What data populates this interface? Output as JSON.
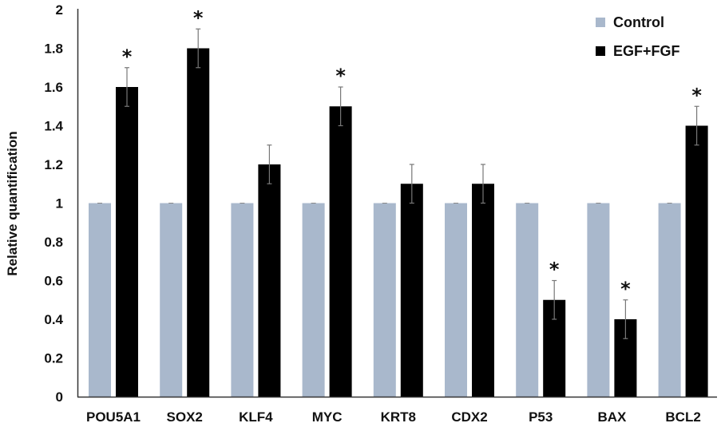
{
  "chart_data": {
    "type": "bar",
    "title": "",
    "xlabel": "",
    "ylabel": "Relative quantification",
    "ylim": [
      0,
      2
    ],
    "yticks": [
      "0",
      "0.2",
      "0.4",
      "0.6",
      "0.8",
      "1",
      "1.2",
      "1.4",
      "1.6",
      "1.8",
      "2"
    ],
    "grid": false,
    "legend_position": "top-right",
    "categories": [
      "POU5A1",
      "SOX2",
      "KLF4",
      "MYC",
      "KRT8",
      "CDX2",
      "P53",
      "BAX",
      "BCL2"
    ],
    "series": [
      {
        "name": "Control",
        "color": "#a9b8cc",
        "values": [
          1,
          1,
          1,
          1,
          1,
          1,
          1,
          1,
          1
        ],
        "errors": [
          0,
          0,
          0,
          0,
          0,
          0,
          0,
          0,
          0
        ]
      },
      {
        "name": "EGF+FGF",
        "color": "#000000",
        "values": [
          1.6,
          1.8,
          1.2,
          1.5,
          1.1,
          1.1,
          0.5,
          0.4,
          1.4
        ],
        "errors": [
          0.1,
          0.1,
          0.1,
          0.1,
          0.1,
          0.1,
          0.1,
          0.1,
          0.1
        ]
      }
    ],
    "annotations": {
      "significance_marker": "*",
      "significant": [
        true,
        true,
        false,
        true,
        false,
        false,
        true,
        true,
        true
      ]
    }
  }
}
